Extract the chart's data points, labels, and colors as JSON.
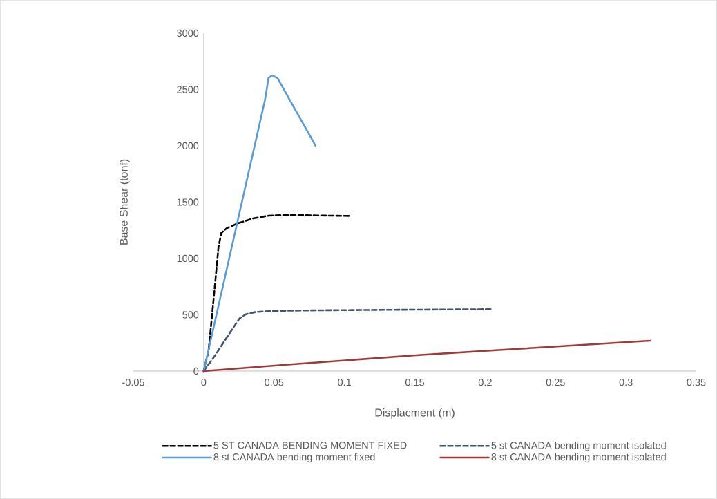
{
  "chart_data": {
    "type": "line",
    "xlabel": "Displacment (m)",
    "ylabel": "Base Shear (tonf)",
    "xlim": [
      -0.05,
      0.35
    ],
    "xticks": [
      -0.05,
      0,
      0.05,
      0.1,
      0.15,
      0.2,
      0.25,
      0.3,
      0.35
    ],
    "ylim": [
      0,
      3000
    ],
    "yticks": [
      0,
      500,
      1000,
      1500,
      2000,
      2500,
      3000
    ],
    "grid": false,
    "legend": "bottom",
    "marker": "none",
    "series": [
      {
        "name": "5 ST CANADA BENDING MOMENT FIXED",
        "color": "#000000",
        "line_style": "dashed",
        "x": [
          0,
          0.0035,
          0.0075,
          0.0105,
          0.0125,
          0.0165,
          0.0245,
          0.035,
          0.046,
          0.06,
          0.08,
          0.1045
        ],
        "values": [
          0,
          184,
          700,
          1100,
          1227,
          1270,
          1313,
          1355,
          1380,
          1387,
          1382,
          1378
        ]
      },
      {
        "name": "5 st CANADA bending moment isolated",
        "color": "#44546a",
        "line_style": "dashed",
        "x": [
          0,
          0.0083,
          0.018,
          0.0255,
          0.03,
          0.037,
          0.05,
          0.083,
          0.14,
          0.204
        ],
        "values": [
          0,
          143,
          330,
          469,
          505,
          525,
          535,
          540,
          545,
          550
        ]
      },
      {
        "name": "8 st CANADA bending moment fixed",
        "color": "#5b9bd5",
        "line_style": "solid",
        "x": [
          0,
          0.0435,
          0.0445,
          0.046,
          0.0485,
          0.0525,
          0.066,
          0.0795
        ],
        "values": [
          0,
          2405,
          2478,
          2601,
          2626,
          2601,
          2300,
          2000
        ]
      },
      {
        "name": "8 st CANADA bending moment isolated",
        "color": "#9e3a38",
        "line_style": "solid",
        "x": [
          0,
          0.06,
          0.1525,
          0.2215,
          0.317
        ],
        "values": [
          0,
          58,
          143,
          196,
          270
        ]
      }
    ]
  }
}
